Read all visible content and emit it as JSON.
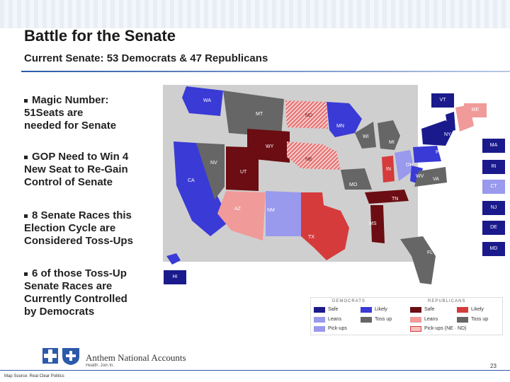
{
  "slide": {
    "title": "Battle for the Senate",
    "subtitle": "Current Senate: 53 Democrats & 47 Republicans"
  },
  "bullets": [
    "Magic Number:\n51Seats are\nneeded for Senate",
    "GOP Need to Win 4\nNew Seat to Re-Gain\nControl of Senate",
    "8 Senate Races this\nElection Cycle are\nConsidered Toss-Ups",
    "6 of those Toss-Up\nSenate Races are\nCurrently Controlled\nby Democrats"
  ],
  "map": {
    "states": {
      "wa": "WA",
      "mt": "MT",
      "nd": "ND",
      "mn": "MN",
      "wi": "WI",
      "mi": "MI",
      "ny": "NY",
      "pa": "PA",
      "oh": "OH",
      "in": "IN",
      "wv": "WV",
      "va": "VA",
      "wy": "WY",
      "ne": "NE",
      "nv": "NV",
      "ut": "UT",
      "ca": "CA",
      "mo": "MO",
      "tn": "TN",
      "az": "AZ",
      "nm": "NM",
      "tx": "TX",
      "ms": "MS",
      "fl": "FL"
    },
    "boxes": {
      "vt": "VT",
      "me": "ME",
      "ma": "MA",
      "ri": "RI",
      "ct": "CT",
      "nj": "NJ",
      "de": "DE",
      "md": "MD",
      "hi": "HI"
    }
  },
  "legend": {
    "dem_header": "DEMOCRATS",
    "rep_header": "REPUBLICANS",
    "dem": [
      "Safe",
      "Likely",
      "Leans",
      "Pick-ups"
    ],
    "rep": [
      "Safe",
      "Likely",
      "Leans",
      "Pick-ups (NE · ND)"
    ],
    "tossup": "Toss up",
    "colors": {
      "dem_safe": "#1a1a8c",
      "dem_likely": "#3a3ad6",
      "dem_leans": "#9999ee",
      "rep_safe": "#6b0d12",
      "rep_likely": "#d63b3b",
      "rep_leans": "#f09a9a",
      "tossup": "#666666",
      "none": "#cfcfcf"
    }
  },
  "footer": {
    "brand": "Anthem National Accounts",
    "tagline": "Health. Join In.",
    "page": "23",
    "source": "Map Source: Real Clear Politics"
  }
}
